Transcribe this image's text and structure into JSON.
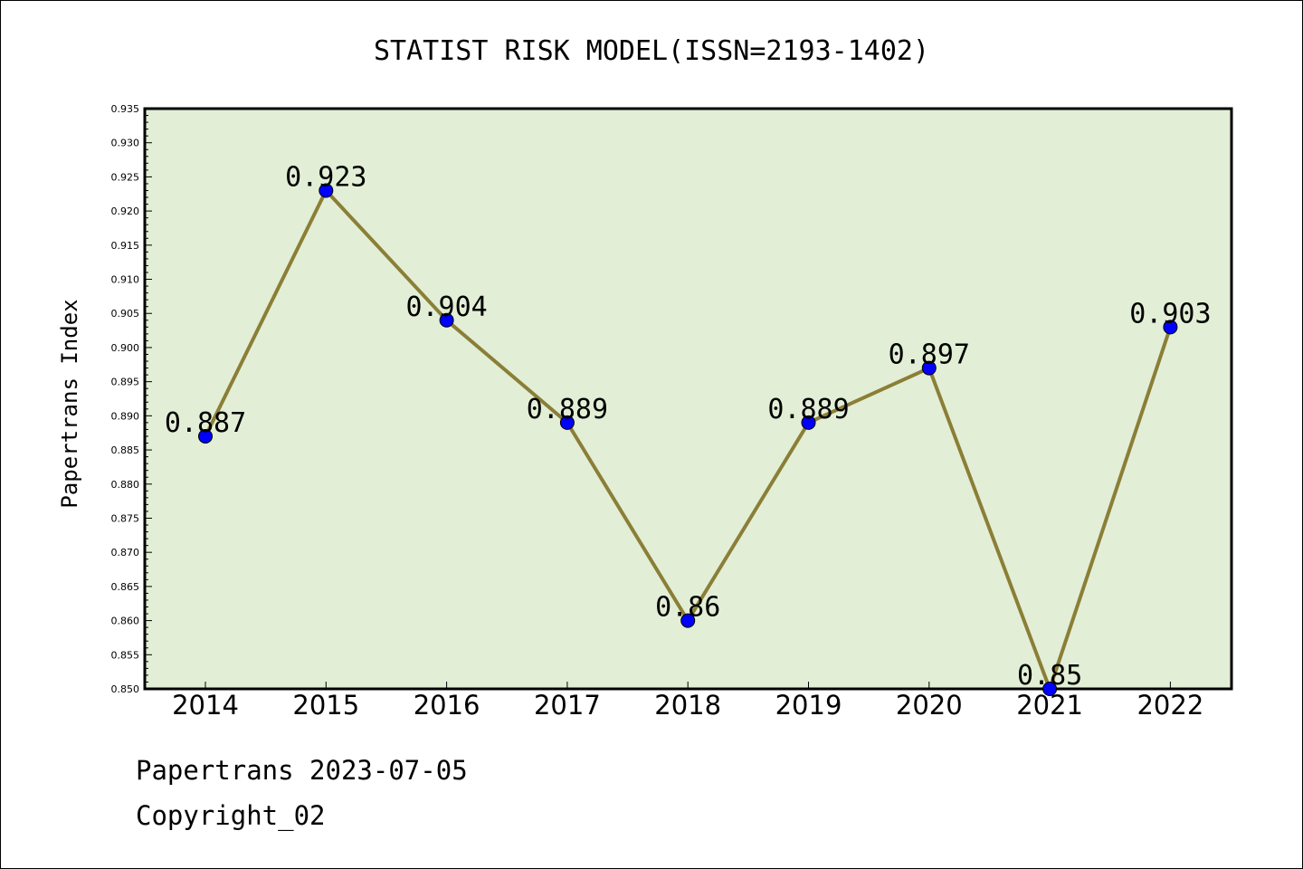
{
  "footer": {
    "line1": "Papertrans 2023-07-05",
    "line2": "Copyright_02"
  },
  "chart_data": {
    "type": "line",
    "title": "STATIST RISK MODEL(ISSN=2193-1402)",
    "xlabel": "",
    "ylabel": "Papertrans Index",
    "x": [
      "2014",
      "2015",
      "2016",
      "2017",
      "2018",
      "2019",
      "2020",
      "2021",
      "2022"
    ],
    "series": [
      {
        "values": [
          0.887,
          0.923,
          0.904,
          0.889,
          0.86,
          0.889,
          0.897,
          0.85,
          0.903
        ]
      }
    ],
    "data_labels": [
      "0.887",
      "0.923",
      "0.904",
      "0.889",
      "0.86",
      "0.889",
      "0.897",
      "0.85",
      "0.903"
    ],
    "ylim": [
      0.85,
      0.935
    ],
    "yticks": [
      "0.850",
      "0.855",
      "0.860",
      "0.865",
      "0.870",
      "0.875",
      "0.880",
      "0.885",
      "0.890",
      "0.895",
      "0.900",
      "0.905",
      "0.910",
      "0.915",
      "0.920",
      "0.925",
      "0.930",
      "0.935"
    ],
    "grid": false,
    "legend": "none",
    "colors": {
      "plot_background": "#e2efd6",
      "line": "#8b7e37",
      "marker": "#0000ff"
    }
  }
}
